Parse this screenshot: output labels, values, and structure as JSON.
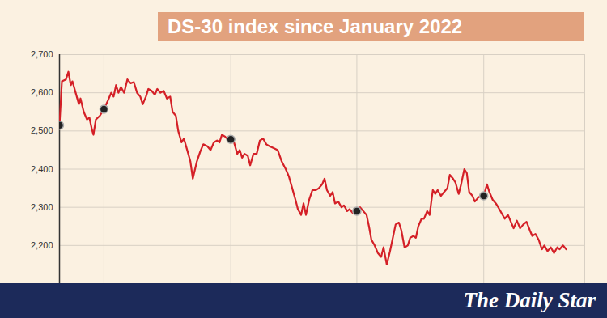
{
  "chart_data": {
    "type": "line",
    "title": "DS-30 index since January 2022",
    "source": "The Daily Star",
    "x": [
      0,
      3,
      8,
      11,
      14,
      16,
      20,
      24,
      26,
      30,
      34,
      37,
      40,
      42,
      45,
      50,
      55,
      60,
      64,
      67,
      70,
      73,
      76,
      80,
      84,
      88,
      92,
      96,
      100,
      103,
      107,
      110,
      114,
      118,
      121,
      125,
      129,
      133,
      137,
      140,
      144,
      147,
      151,
      154,
      158,
      162,
      165,
      170,
      174,
      178,
      183,
      187,
      191,
      195,
      198,
      201,
      205,
      209,
      212,
      216,
      220,
      223,
      226,
      229,
      233,
      236,
      240,
      244,
      248,
      252,
      256,
      260,
      265,
      270,
      275,
      280,
      284,
      288,
      292,
      295,
      299,
      302,
      305,
      309,
      313,
      317,
      321,
      325,
      328,
      331,
      335,
      338,
      341,
      345,
      349,
      352,
      356,
      359,
      363,
      366,
      368,
      372,
      376,
      380,
      383,
      386,
      390,
      394,
      398,
      401,
      405,
      409,
      413,
      416,
      420,
      423,
      427,
      431,
      434,
      438,
      441,
      444,
      448,
      451,
      455,
      458,
      462,
      465,
      468,
      472,
      476,
      480,
      483,
      487,
      490,
      494,
      497,
      501,
      504,
      507,
      511,
      514,
      518,
      521,
      525,
      529,
      532,
      536,
      540,
      543,
      547,
      551,
      555,
      558,
      562,
      566,
      570,
      574,
      578,
      582,
      585,
      589,
      593,
      597,
      600,
      604,
      608,
      612,
      616,
      619,
      623,
      627
    ],
    "values": [
      2515,
      2630,
      2635,
      2655,
      2620,
      2630,
      2600,
      2570,
      2585,
      2550,
      2530,
      2535,
      2505,
      2490,
      2530,
      2540,
      2557,
      2580,
      2600,
      2590,
      2620,
      2600,
      2615,
      2600,
      2635,
      2625,
      2628,
      2600,
      2590,
      2570,
      2590,
      2610,
      2605,
      2595,
      2610,
      2600,
      2605,
      2585,
      2590,
      2550,
      2540,
      2500,
      2470,
      2480,
      2450,
      2420,
      2375,
      2420,
      2445,
      2465,
      2460,
      2450,
      2470,
      2475,
      2470,
      2490,
      2485,
      2475,
      2478,
      2470,
      2440,
      2450,
      2430,
      2440,
      2435,
      2410,
      2440,
      2440,
      2475,
      2480,
      2465,
      2460,
      2455,
      2450,
      2420,
      2400,
      2380,
      2350,
      2320,
      2295,
      2280,
      2310,
      2280,
      2320,
      2345,
      2345,
      2350,
      2360,
      2375,
      2345,
      2330,
      2340,
      2310,
      2315,
      2300,
      2305,
      2290,
      2295,
      2285,
      2290,
      2290,
      2300,
      2290,
      2280,
      2250,
      2215,
      2200,
      2180,
      2170,
      2195,
      2150,
      2185,
      2225,
      2255,
      2260,
      2240,
      2195,
      2200,
      2220,
      2225,
      2220,
      2250,
      2270,
      2270,
      2290,
      2280,
      2345,
      2335,
      2345,
      2330,
      2340,
      2350,
      2385,
      2375,
      2365,
      2335,
      2360,
      2400,
      2390,
      2340,
      2330,
      2315,
      2325,
      2330,
      2330,
      2360,
      2340,
      2320,
      2310,
      2300,
      2285,
      2270,
      2280,
      2265,
      2245,
      2265,
      2245,
      2255,
      2262,
      2240,
      2225,
      2230,
      2215,
      2190,
      2200,
      2185,
      2195,
      2180,
      2195,
      2190,
      2200,
      2190
    ],
    "color": "#d42027",
    "points": {
      "x": [
        0,
        55,
        212,
        368,
        525
      ],
      "values": [
        2515,
        2557,
        2478,
        2290,
        2330
      ],
      "marker": "circle"
    },
    "xlim": [
      0,
      650
    ],
    "xticks": [
      55,
      212,
      368,
      525
    ],
    "ylim": [
      2100,
      2700
    ],
    "yticks": [
      {
        "value": 2200,
        "label": "2,200"
      },
      {
        "value": 2300,
        "label": "2,300"
      },
      {
        "value": 2400,
        "label": "2,400"
      },
      {
        "value": 2500,
        "label": "2,500"
      },
      {
        "value": 2600,
        "label": "2,600"
      },
      {
        "value": 2700,
        "label": "2,700"
      }
    ],
    "grid": true,
    "tick_labels": "y"
  }
}
